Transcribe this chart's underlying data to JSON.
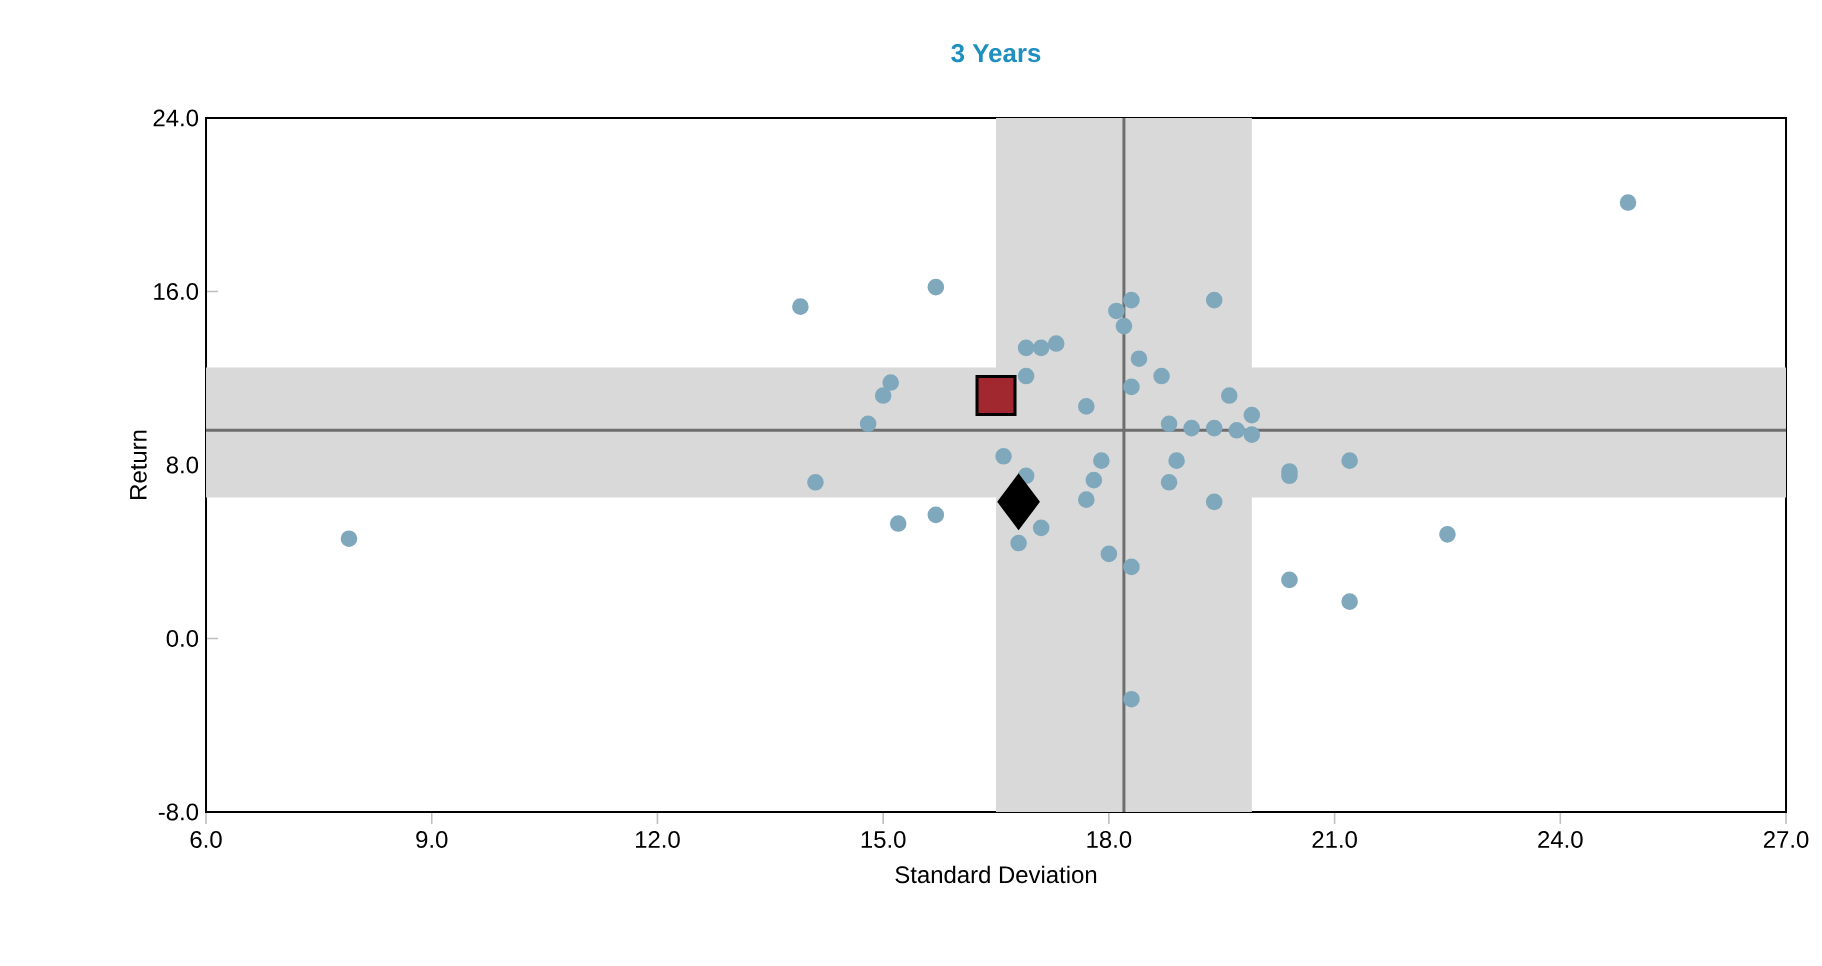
{
  "chart_data": {
    "type": "scatter",
    "title": "3 Years",
    "xlabel": "Standard Deviation",
    "ylabel": "Return",
    "xlim": [
      6,
      27
    ],
    "ylim": [
      -8,
      24
    ],
    "xticks": [
      {
        "value": 6,
        "label": "6.0"
      },
      {
        "value": 9,
        "label": "9.0"
      },
      {
        "value": 12,
        "label": "12.0"
      },
      {
        "value": 15,
        "label": "15.0"
      },
      {
        "value": 18,
        "label": "18.0"
      },
      {
        "value": 21,
        "label": "21.0"
      },
      {
        "value": 24,
        "label": "24.0"
      },
      {
        "value": 27,
        "label": "27.0"
      }
    ],
    "yticks": [
      {
        "value": -8,
        "label": "-8.0"
      },
      {
        "value": 0,
        "label": "0.0"
      },
      {
        "value": 8,
        "label": "8.0"
      },
      {
        "value": 16,
        "label": "16.0"
      },
      {
        "value": 24,
        "label": "24.0"
      }
    ],
    "bands": [
      {
        "axis": "x",
        "from": 16.5,
        "to": 19.9,
        "color": "#d9d9d9"
      },
      {
        "axis": "y",
        "from": 6.5,
        "to": 12.5,
        "color": "#d9d9d9"
      }
    ],
    "ref_lines": [
      {
        "axis": "x",
        "value": 18.2,
        "color": "#6e6e6e"
      },
      {
        "axis": "y",
        "value": 9.6,
        "color": "#6e6e6e"
      }
    ],
    "series": [
      {
        "color": "#7fa8bd",
        "marker": "circle",
        "x": [
          24.9,
          13.9,
          15.7,
          18.1,
          18.3,
          18.2,
          19.4,
          16.9,
          17.1,
          17.3,
          16.9,
          18.4,
          18.7,
          18.3,
          15.1,
          15.0,
          14.8,
          17.7,
          19.6,
          19.9,
          18.8,
          19.1,
          19.4,
          19.7,
          19.9,
          16.6,
          16.9,
          17.9,
          17.8,
          18.9,
          18.8,
          17.7,
          19.4,
          20.4,
          20.4,
          21.2,
          14.1,
          7.9,
          15.2,
          15.7,
          17.1,
          16.8,
          18.0,
          18.3,
          20.4,
          21.2,
          22.5,
          18.3
        ],
        "values": [
          20.1,
          15.3,
          16.2,
          15.1,
          15.6,
          14.4,
          15.6,
          13.4,
          13.4,
          13.6,
          12.1,
          12.9,
          12.1,
          11.6,
          11.8,
          11.2,
          9.9,
          10.7,
          11.2,
          10.3,
          9.9,
          9.7,
          9.7,
          9.6,
          9.4,
          8.4,
          7.5,
          8.2,
          7.3,
          8.2,
          7.2,
          6.4,
          6.3,
          7.7,
          7.5,
          8.2,
          7.2,
          4.6,
          5.3,
          5.7,
          5.1,
          4.4,
          3.9,
          3.3,
          2.7,
          1.7,
          4.8,
          -2.8
        ]
      },
      {
        "color": "#a0282e",
        "marker": "square",
        "x": [
          16.5
        ],
        "values": [
          11.2
        ]
      },
      {
        "color": "#000000",
        "marker": "diamond",
        "x": [
          16.8
        ],
        "values": [
          6.3
        ]
      }
    ]
  }
}
